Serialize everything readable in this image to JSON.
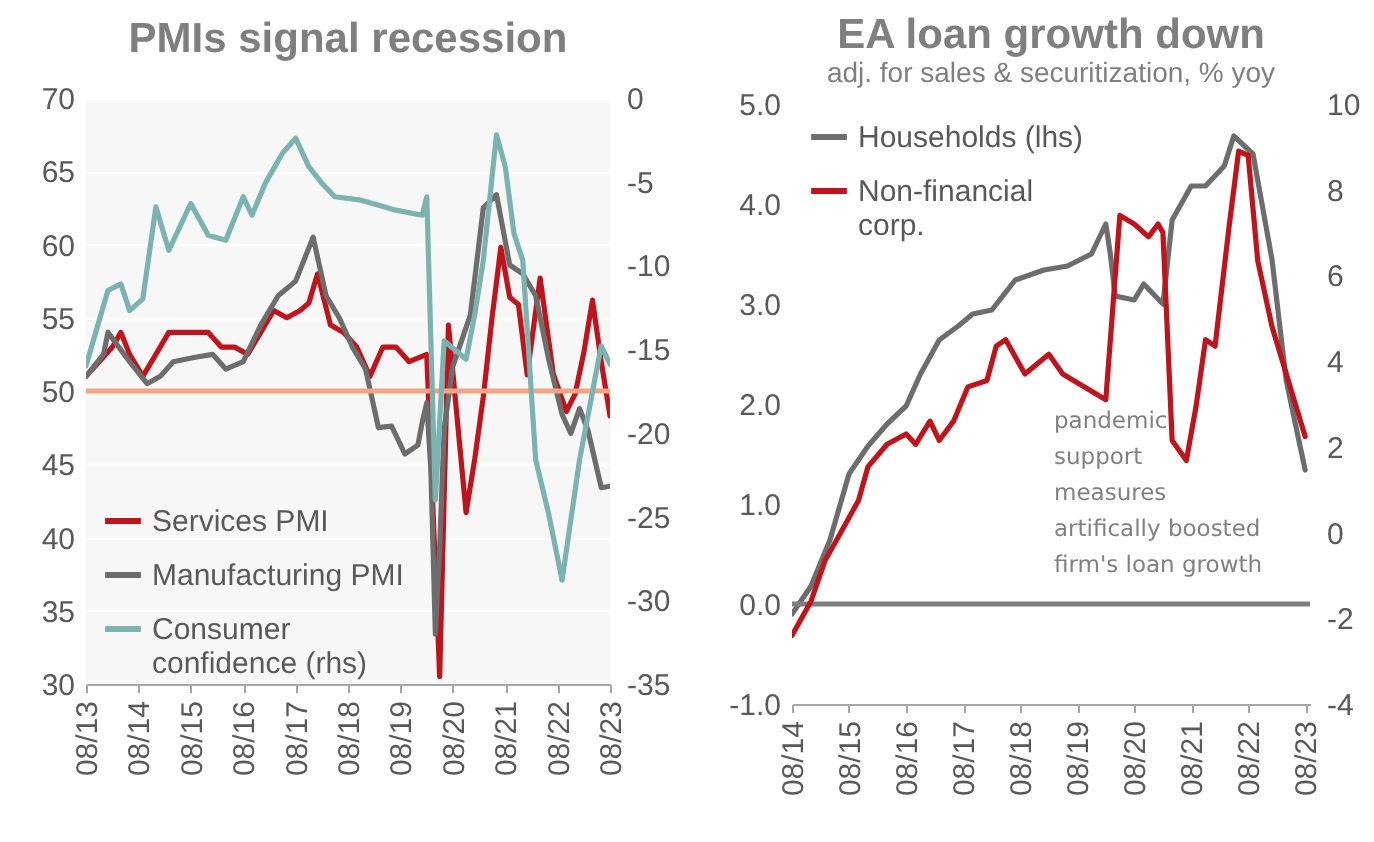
{
  "chart_data": [
    {
      "type": "line",
      "title": "PMIs signal recession",
      "legend": "bottom left",
      "grid": "y",
      "xlim": [
        "2013-08",
        "2023-08"
      ],
      "xticks": [
        {
          "value": "2013-08",
          "label": "08/13"
        },
        {
          "value": "2014-08",
          "label": "08/14"
        },
        {
          "value": "2015-08",
          "label": "08/15"
        },
        {
          "value": "2016-08",
          "label": "08/16"
        },
        {
          "value": "2017-08",
          "label": "08/17"
        },
        {
          "value": "2018-08",
          "label": "08/18"
        },
        {
          "value": "2019-08",
          "label": "08/19"
        },
        {
          "value": "2020-08",
          "label": "08/20"
        },
        {
          "value": "2021-08",
          "label": "08/21"
        },
        {
          "value": "2022-08",
          "label": "08/22"
        },
        {
          "value": "2023-08",
          "label": "08/23"
        }
      ],
      "ylim": [
        30,
        70
      ],
      "yticks": [
        30,
        35,
        40,
        45,
        50,
        55,
        60,
        65,
        70
      ],
      "y2lim": [
        -35,
        0
      ],
      "y2ticks": [
        -35,
        -30,
        -25,
        -20,
        -15,
        -10,
        -5,
        0
      ],
      "ref_lines": [
        {
          "axis": "y",
          "value": 50,
          "color": "#f4a383"
        }
      ],
      "series": [
        {
          "name": "Services PMI",
          "color": "#c0141c",
          "x": [
            "2013-08",
            "2013-11",
            "2014-02",
            "2014-04",
            "2014-06",
            "2014-09",
            "2014-12",
            "2015-03",
            "2015-06",
            "2015-09",
            "2015-12",
            "2016-03",
            "2016-06",
            "2016-09",
            "2016-12",
            "2017-03",
            "2017-06",
            "2017-09",
            "2017-11",
            "2018-01",
            "2018-04",
            "2018-07",
            "2018-10",
            "2019-01",
            "2019-04",
            "2019-07",
            "2019-10",
            "2020-02",
            "2020-05",
            "2020-07",
            "2020-09",
            "2020-11",
            "2021-01",
            "2021-03",
            "2021-05",
            "2021-07",
            "2021-09",
            "2021-11",
            "2022-01",
            "2022-04",
            "2022-07",
            "2022-10",
            "2022-12",
            "2023-02",
            "2023-04",
            "2023-06",
            "2023-08"
          ],
          "values": [
            51,
            52,
            53,
            54,
            52.5,
            51,
            52.5,
            54,
            54,
            54,
            54,
            53,
            53,
            52.5,
            54,
            55.5,
            55,
            55.5,
            56,
            58,
            54.5,
            54,
            53,
            51,
            53,
            53,
            52,
            52.5,
            30.5,
            54.5,
            48,
            41.7,
            45.4,
            49.6,
            55,
            59.8,
            56.4,
            55.9,
            51.1,
            57.7,
            51.2,
            48.6,
            49.8,
            52.7,
            56.2,
            52,
            48.3
          ]
        },
        {
          "name": "Manufacturing PMI",
          "color": "#6d6d6d",
          "x": [
            "2013-08",
            "2013-12",
            "2014-01",
            "2014-06",
            "2014-10",
            "2015-01",
            "2015-04",
            "2015-09",
            "2016-01",
            "2016-04",
            "2016-08",
            "2016-12",
            "2017-04",
            "2017-08",
            "2017-12",
            "2018-03",
            "2018-06",
            "2018-09",
            "2018-12",
            "2019-03",
            "2019-06",
            "2019-09",
            "2019-12",
            "2020-01",
            "2020-02",
            "2020-03",
            "2020-04",
            "2020-05",
            "2020-06",
            "2020-08",
            "2020-12",
            "2021-03",
            "2021-06",
            "2021-09",
            "2021-12",
            "2022-03",
            "2022-06",
            "2022-09",
            "2022-11",
            "2023-01",
            "2023-03",
            "2023-06",
            "2023-08"
          ],
          "values": [
            51,
            52.5,
            54,
            52,
            50.5,
            51,
            52,
            52.3,
            52.5,
            51.5,
            52,
            54.5,
            56.5,
            57.5,
            60.5,
            56.5,
            55,
            53,
            51.5,
            47.5,
            47.6,
            45.7,
            46.3,
            47.9,
            49.2,
            44.5,
            33.4,
            39.4,
            47.4,
            51.7,
            55.2,
            62.5,
            63.4,
            58.6,
            58,
            56.5,
            52.1,
            48.4,
            47.1,
            48.8,
            47.3,
            43.4,
            43.5
          ]
        },
        {
          "name": "Consumer confidence (rhs)",
          "color": "#7ab3b0",
          "axis": "y2",
          "x": [
            "2013-08",
            "2014-01",
            "2014-04",
            "2014-06",
            "2014-09",
            "2014-12",
            "2015-03",
            "2015-08",
            "2015-12",
            "2016-04",
            "2016-08",
            "2016-10",
            "2017-01",
            "2017-05",
            "2017-08",
            "2017-11",
            "2018-02",
            "2018-05",
            "2018-11",
            "2019-07",
            "2020-01",
            "2020-02",
            "2020-04",
            "2020-06",
            "2020-11",
            "2021-01",
            "2021-03",
            "2021-06",
            "2021-08",
            "2021-10",
            "2021-12",
            "2022-03",
            "2022-06",
            "2022-09",
            "2023-01",
            "2023-06",
            "2023-08"
          ],
          "values": [
            -16,
            -11.5,
            -11.1,
            -12.7,
            -12,
            -6.5,
            -9.1,
            -6.3,
            -8.2,
            -8.5,
            -5.9,
            -7,
            -5.1,
            -3.3,
            -2.4,
            -4.1,
            -5.1,
            -5.9,
            -6.1,
            -6.7,
            -7,
            -5.9,
            -24,
            -14.5,
            -15.6,
            -12.9,
            -9.7,
            -2.2,
            -4.1,
            -8.1,
            -9.7,
            -21.6,
            -24.9,
            -28.8,
            -21.6,
            -14.8,
            -15.9
          ]
        }
      ]
    },
    {
      "type": "line",
      "title": "EA loan growth down",
      "subtitle": "adj. for sales & securitization, % yoy",
      "legend": "top left",
      "grid": "y",
      "xlim": [
        "2014-08",
        "2023-09"
      ],
      "xticks": [
        {
          "value": "2014-08",
          "label": "08/14"
        },
        {
          "value": "2015-08",
          "label": "08/15"
        },
        {
          "value": "2016-08",
          "label": "08/16"
        },
        {
          "value": "2017-08",
          "label": "08/17"
        },
        {
          "value": "2018-08",
          "label": "08/18"
        },
        {
          "value": "2019-08",
          "label": "08/19"
        },
        {
          "value": "2020-08",
          "label": "08/20"
        },
        {
          "value": "2021-08",
          "label": "08/21"
        },
        {
          "value": "2022-08",
          "label": "08/22"
        },
        {
          "value": "2023-08",
          "label": "08/23"
        }
      ],
      "ylim": [
        -1,
        5
      ],
      "yticks": [
        {
          "value": -1,
          "label": "-1.0"
        },
        {
          "value": 0,
          "label": "0.0"
        },
        {
          "value": 1,
          "label": "1.0"
        },
        {
          "value": 2,
          "label": "2.0"
        },
        {
          "value": 3,
          "label": "3.0"
        },
        {
          "value": 4,
          "label": "4.0"
        },
        {
          "value": 5,
          "label": "5.0"
        }
      ],
      "y2lim": [
        -4,
        10
      ],
      "y2ticks": [
        -4,
        -2,
        0,
        2,
        4,
        6,
        8,
        10
      ],
      "ref_lines": [
        {
          "axis": "y",
          "value": 0,
          "color": "#7f7f7f"
        }
      ],
      "annotations": [
        "pandemic\nsupport\nmeasures\nartifically  boosted\nfirm's loan  growth"
      ],
      "series": [
        {
          "name": "Households (lhs)",
          "color": "#6d6d6d",
          "x": [
            "2014-08",
            "2014-12",
            "2015-04",
            "2015-08",
            "2015-12",
            "2016-04",
            "2016-08",
            "2016-11",
            "2017-03",
            "2017-07",
            "2017-10",
            "2018-02",
            "2018-07",
            "2019-01",
            "2019-06",
            "2019-11",
            "2020-02",
            "2020-03",
            "2020-04",
            "2020-08",
            "2020-10",
            "2021-02",
            "2021-04",
            "2021-08",
            "2021-11",
            "2022-03",
            "2022-05",
            "2022-09",
            "2023-01",
            "2023-04",
            "2023-08"
          ],
          "values": [
            -0.1,
            0.18,
            0.64,
            1.3,
            1.58,
            1.8,
            1.98,
            2.3,
            2.64,
            2.78,
            2.9,
            2.94,
            3.24,
            3.34,
            3.38,
            3.5,
            3.8,
            3.5,
            3.08,
            3.04,
            3.2,
            3,
            3.84,
            4.18,
            4.18,
            4.38,
            4.68,
            4.5,
            3.44,
            2.24,
            1.34
          ]
        },
        {
          "name": "Non-financial corp.",
          "color": "#c0141c",
          "axis": "y2",
          "x": [
            "2014-08",
            "2014-12",
            "2015-03",
            "2015-07",
            "2015-10",
            "2015-12",
            "2016-04",
            "2016-08",
            "2016-10",
            "2017-01",
            "2017-03",
            "2017-06",
            "2017-09",
            "2018-01",
            "2018-03",
            "2018-05",
            "2018-09",
            "2019-02",
            "2019-05",
            "2020-02",
            "2020-05",
            "2020-08",
            "2020-11",
            "2021-01",
            "2021-02",
            "2021-04",
            "2021-07",
            "2021-09",
            "2021-11",
            "2022-01",
            "2022-04",
            "2022-06",
            "2022-08",
            "2022-10",
            "2023-01",
            "2023-08"
          ],
          "values": [
            -2.4,
            -1.6,
            -0.65,
            0.14,
            0.75,
            1.54,
            2.06,
            2.3,
            2.06,
            2.6,
            2.15,
            2.6,
            3.4,
            3.55,
            4.35,
            4.5,
            3.7,
            4.16,
            3.7,
            3.1,
            7.4,
            7.2,
            6.9,
            7.2,
            7,
            2.15,
            1.68,
            2.94,
            4.5,
            4.35,
            7.15,
            8.9,
            8.8,
            6.35,
            4.8,
            2.24
          ]
        }
      ]
    }
  ]
}
